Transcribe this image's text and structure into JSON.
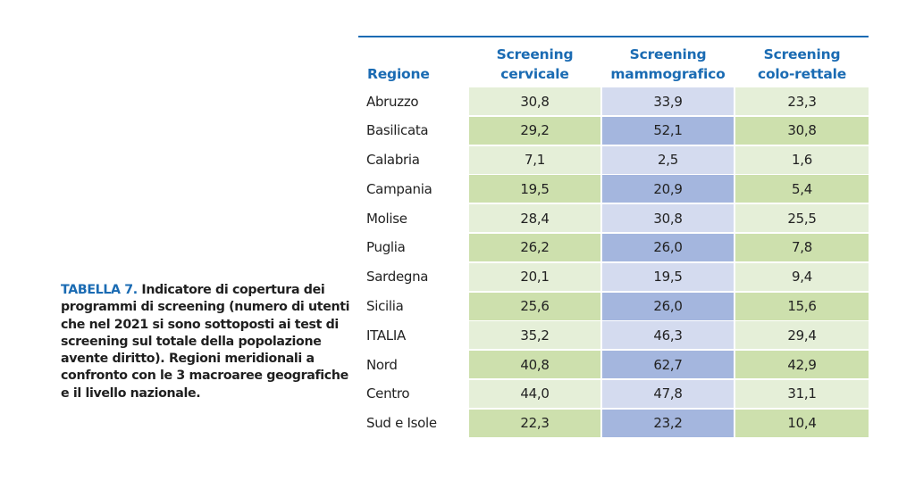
{
  "caption": {
    "label": "TABELLA 7.",
    "text": " Indicatore di copertura dei programmi di screening (numero di utenti che nel 2021 si sono sottoposti ai test di screening sul totale della popolazione avente diritto). Regioni meridionali a confronto con le 3 macroaree geografiche e il livello nazionale."
  },
  "table": {
    "headers": {
      "region": "Regione",
      "col1": [
        "Screening",
        "cervicale"
      ],
      "col2": [
        "Screening",
        "mammografico"
      ],
      "col3": [
        "Screening",
        "colo-rettale"
      ]
    },
    "rows": [
      {
        "region": "Abruzzo",
        "cervicale": "30,8",
        "mammografico": "33,9",
        "colorettale": "23,3"
      },
      {
        "region": "Basilicata",
        "cervicale": "29,2",
        "mammografico": "52,1",
        "colorettale": "30,8"
      },
      {
        "region": "Calabria",
        "cervicale": "7,1",
        "mammografico": "2,5",
        "colorettale": "1,6"
      },
      {
        "region": "Campania",
        "cervicale": "19,5",
        "mammografico": "20,9",
        "colorettale": "5,4"
      },
      {
        "region": "Molise",
        "cervicale": "28,4",
        "mammografico": "30,8",
        "colorettale": "25,5"
      },
      {
        "region": "Puglia",
        "cervicale": "26,2",
        "mammografico": "26,0",
        "colorettale": "7,8"
      },
      {
        "region": "Sardegna",
        "cervicale": "20,1",
        "mammografico": "19,5",
        "colorettale": "9,4"
      },
      {
        "region": "Sicilia",
        "cervicale": "25,6",
        "mammografico": "26,0",
        "colorettale": "15,6"
      },
      {
        "region": "ITALIA",
        "cervicale": "35,2",
        "mammografico": "46,3",
        "colorettale": "29,4"
      },
      {
        "region": "Nord",
        "cervicale": "40,8",
        "mammografico": "62,7",
        "colorettale": "42,9"
      },
      {
        "region": "Centro",
        "cervicale": "44,0",
        "mammografico": "47,8",
        "colorettale": "31,1"
      },
      {
        "region": "Sud e Isole",
        "cervicale": "22,3",
        "mammografico": "23,2",
        "colorettale": "10,4"
      }
    ]
  },
  "colors": {
    "accent_blue": "#1a6bb3",
    "green_light": "#e5efd8",
    "green_dark": "#cde0ad",
    "blue_light": "#d4dbef",
    "blue_dark": "#a4b6de"
  }
}
